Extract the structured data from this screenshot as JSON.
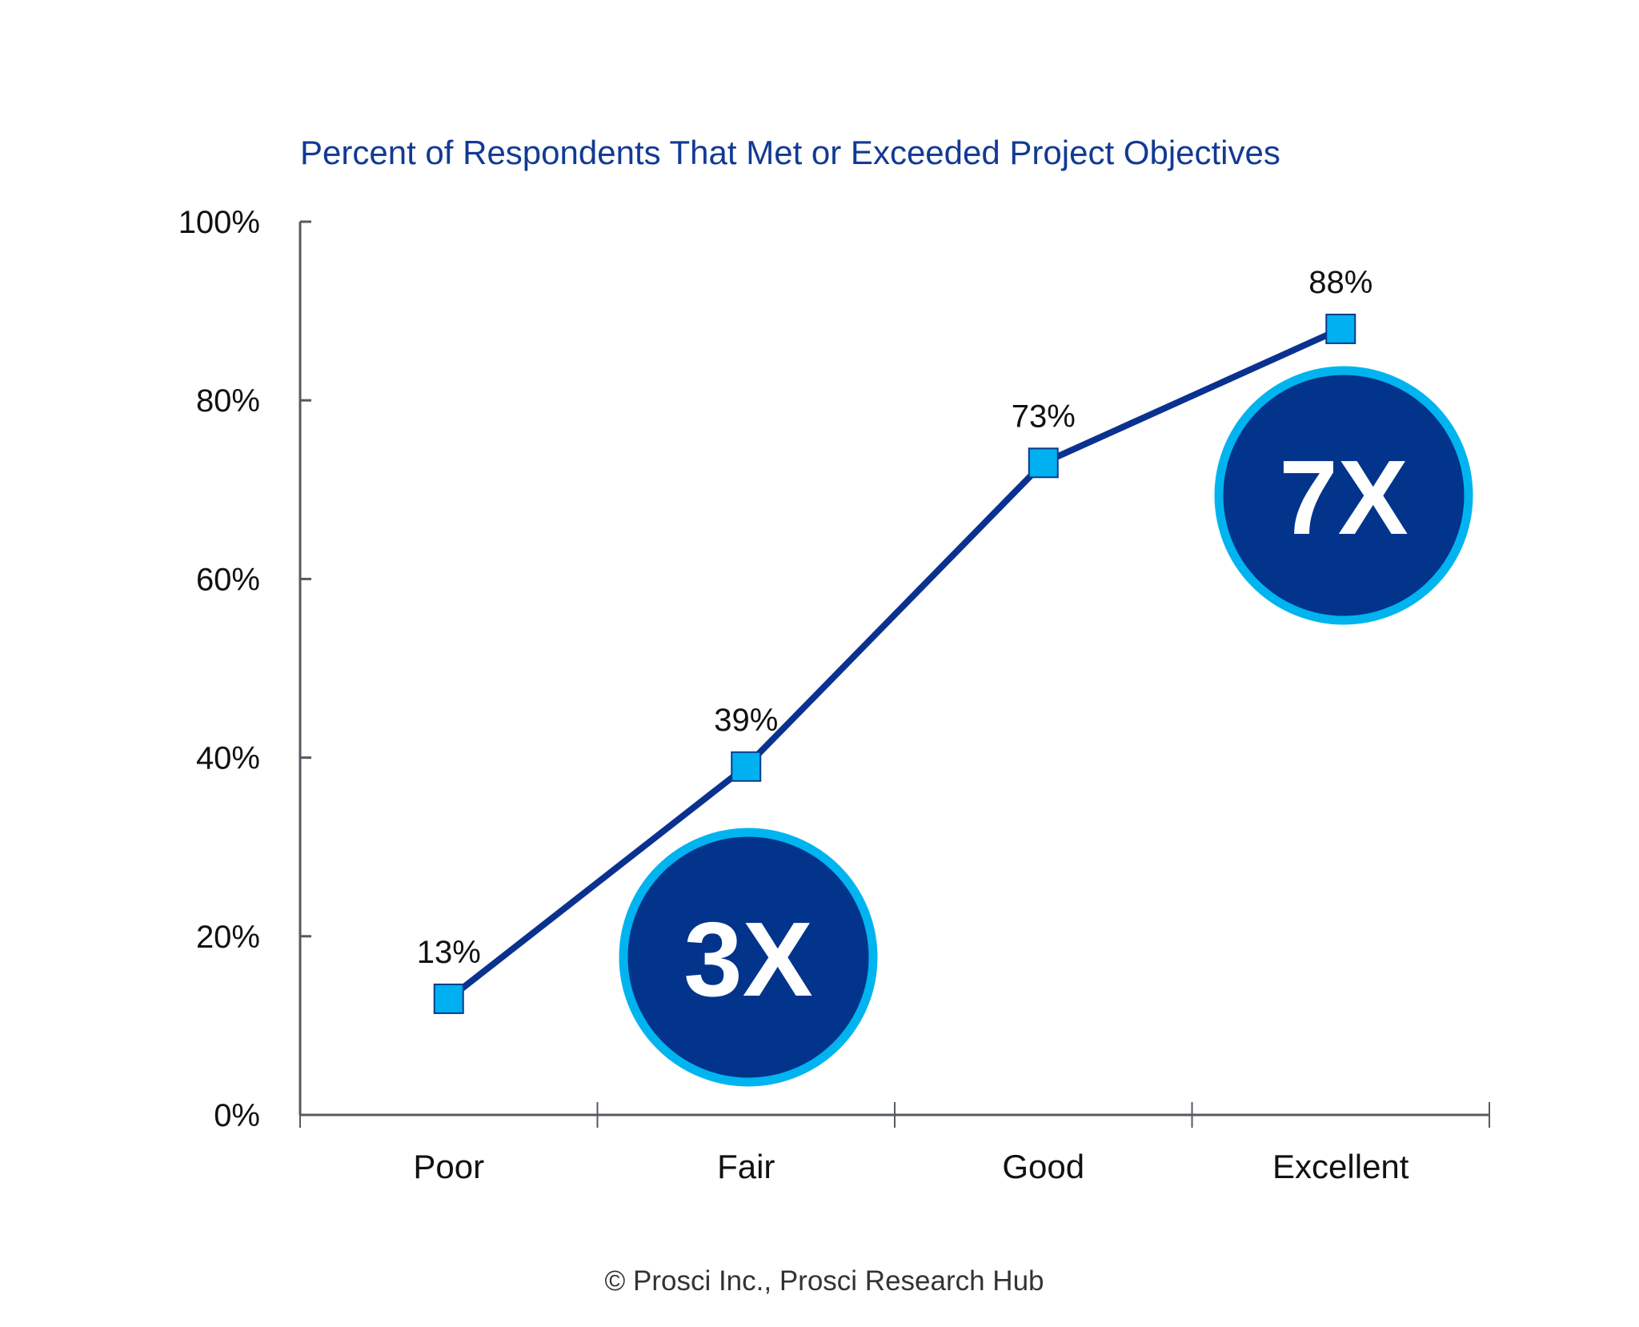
{
  "chart_data": {
    "type": "line",
    "title": "Percent of Respondents That Met or Exceeded Project Objectives",
    "xlabel": "",
    "ylabel": "",
    "categories": [
      "Poor",
      "Fair",
      "Good",
      "Excellent"
    ],
    "values": [
      13,
      39,
      73,
      88
    ],
    "data_labels": [
      "13%",
      "39%",
      "73%",
      "88%"
    ],
    "ylim": [
      0,
      100
    ],
    "yticks": [
      0,
      20,
      40,
      60,
      80,
      100
    ],
    "ytick_labels": [
      "0%",
      "20%",
      "40%",
      "60%",
      "80%",
      "100%"
    ],
    "grid": false,
    "legend": "none",
    "annotations": [
      {
        "text": "3X",
        "near_category": "Fair"
      },
      {
        "text": "7X",
        "near_category": "Excellent"
      }
    ],
    "colors": {
      "line": "#0b3190",
      "marker": "#00b0f0",
      "badge_fill": "#03348c",
      "badge_ring": "#00b4ef",
      "title": "#123a94"
    }
  },
  "footer": "© Prosci Inc., Prosci Research Hub"
}
